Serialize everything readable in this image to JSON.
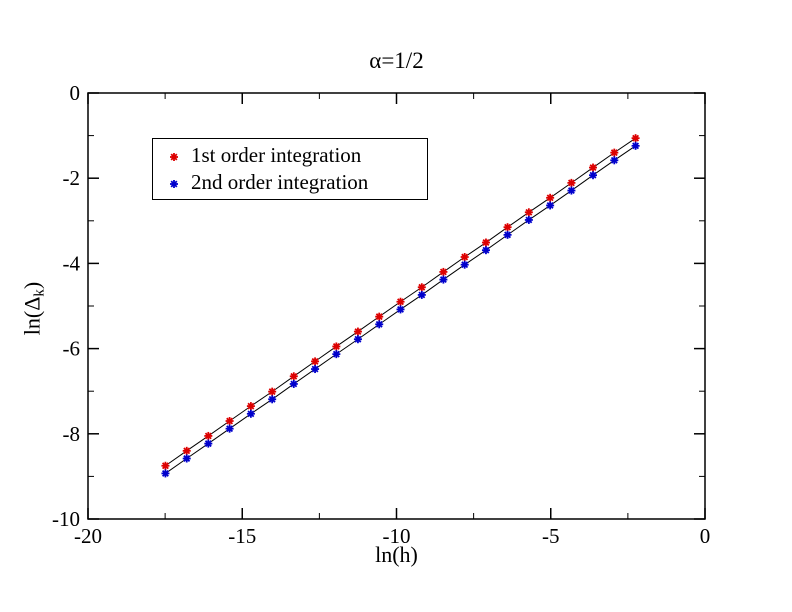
{
  "title": "α=1/2",
  "axes": {
    "xlabel": "ln(h)",
    "ylabel_pre": "ln(Δ",
    "ylabel_sub": "k",
    "ylabel_post": ")"
  },
  "colors": {
    "series1": "#dd0000",
    "series2": "#0000cc",
    "connector_line": "#000000",
    "frame": "#000000",
    "background": "#ffffff"
  },
  "legend": {
    "items": [
      {
        "label": "1st order integration",
        "marker": "asterisk",
        "color": "#dd0000"
      },
      {
        "label": "2nd order integration",
        "marker": "asterisk",
        "color": "#0000cc"
      }
    ]
  },
  "chart_data": {
    "type": "scatter",
    "title": "α=1/2",
    "xlabel": "ln(h)",
    "ylabel": "ln(Δ_k)",
    "xlim": [
      -20,
      0
    ],
    "ylim": [
      -10,
      0
    ],
    "x_major_ticks": [
      -20,
      -15,
      -10,
      -5,
      0
    ],
    "x_minor_ticks": [
      -17.5,
      -12.5,
      -7.5,
      -2.5
    ],
    "y_major_ticks": [
      0,
      -2,
      -4,
      -6,
      -8,
      -10
    ],
    "y_minor_ticks": [
      -1,
      -3,
      -5,
      -7,
      -9
    ],
    "x_tick_labels": [
      "-20",
      "-15",
      "-10",
      "-5",
      "0"
    ],
    "y_tick_labels": [
      "0",
      "-2",
      "-4",
      "-6",
      "-8",
      "-10"
    ],
    "grid": false,
    "legend_position": "upper-left-inside",
    "x": [
      -17.49,
      -16.8,
      -16.1,
      -15.41,
      -14.72,
      -14.03,
      -13.33,
      -12.64,
      -11.95,
      -11.25,
      -10.56,
      -9.87,
      -9.18,
      -8.48,
      -7.79,
      -7.1,
      -6.4,
      -5.71,
      -5.02,
      -4.33,
      -3.63,
      -2.94,
      -2.25
    ],
    "series": [
      {
        "name": "1st order integration",
        "marker": "asterisk",
        "color": "#dd0000",
        "line_color": "#000000",
        "values": [
          -8.75,
          -8.4,
          -8.05,
          -7.7,
          -7.35,
          -7.01,
          -6.65,
          -6.3,
          -5.95,
          -5.6,
          -5.25,
          -4.9,
          -4.56,
          -4.2,
          -3.85,
          -3.51,
          -3.15,
          -2.8,
          -2.46,
          -2.11,
          -1.75,
          -1.4,
          -1.06
        ]
      },
      {
        "name": "2nd order integration",
        "marker": "asterisk",
        "color": "#0000cc",
        "line_color": "#000000",
        "values": [
          -8.93,
          -8.58,
          -8.23,
          -7.88,
          -7.53,
          -7.19,
          -6.83,
          -6.48,
          -6.13,
          -5.78,
          -5.43,
          -5.08,
          -4.74,
          -4.38,
          -4.03,
          -3.69,
          -3.33,
          -2.98,
          -2.64,
          -2.29,
          -1.93,
          -1.58,
          -1.24
        ]
      }
    ]
  }
}
